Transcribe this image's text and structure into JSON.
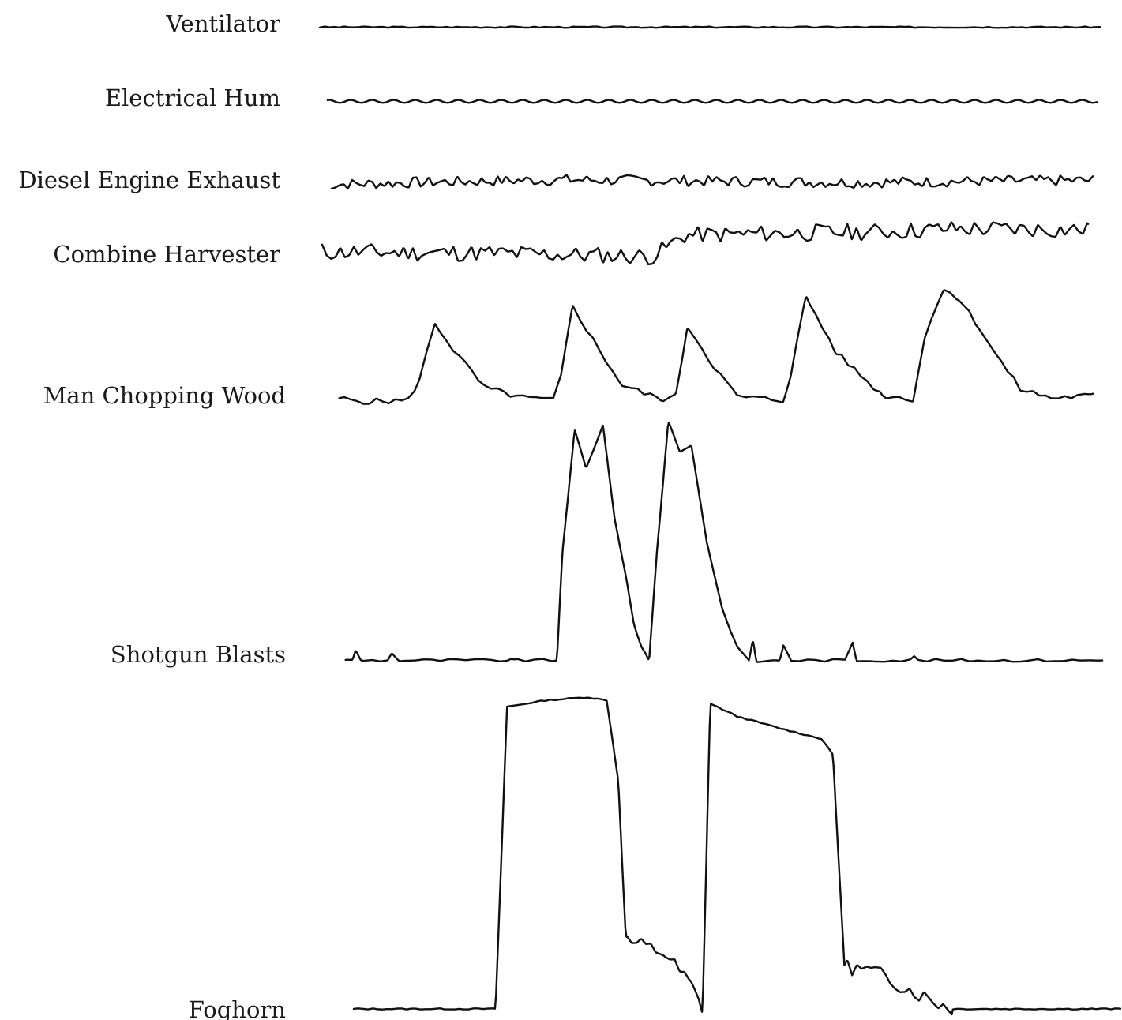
{
  "chart_data": {
    "type": "line",
    "title": "",
    "xlabel": "",
    "ylabel": "",
    "grid": false,
    "legend": "none",
    "colors": {
      "trace": "#111111",
      "label": "#1a1a1a",
      "background": "#ffffff"
    },
    "series": [
      {
        "name": "Ventilator",
        "shape": "noise",
        "base": 0.1,
        "noise_amp": 0.025,
        "noise_cycles": 160,
        "seed": 3,
        "x_range": [
          0.0,
          1.0
        ],
        "values": [
          [
            0,
            0.1
          ],
          [
            1,
            0.1
          ]
        ]
      },
      {
        "name": "Electrical Hum",
        "shape": "sine",
        "base": 0.1,
        "sine_amp": 0.05,
        "sine_cycles": 36,
        "x_range": [
          0.005,
          0.998
        ],
        "values": [
          [
            0,
            0.1
          ],
          [
            1,
            0.1
          ]
        ]
      },
      {
        "name": "Diesel Engine Exhaust",
        "shape": "noise",
        "base": 0.1,
        "noise_amp": 0.08,
        "noise_cycles": 190,
        "seed": 7,
        "x_range": [
          0.005,
          0.995
        ],
        "values": [
          [
            0,
            0.07
          ],
          [
            0.15,
            0.11
          ],
          [
            0.3,
            0.14
          ],
          [
            0.5,
            0.12
          ],
          [
            0.7,
            0.1
          ],
          [
            0.85,
            0.12
          ],
          [
            1,
            0.13
          ]
        ]
      },
      {
        "name": "Combine Harvester",
        "shape": "noise",
        "base": 0.1,
        "noise_amp": 0.08,
        "noise_cycles": 170,
        "seed": 11,
        "x_range": [
          0.0,
          0.995
        ],
        "values": [
          [
            0,
            0.1
          ],
          [
            0.2,
            0.09
          ],
          [
            0.35,
            0.07
          ],
          [
            0.43,
            0.06
          ],
          [
            0.47,
            0.25
          ],
          [
            0.6,
            0.27
          ],
          [
            0.72,
            0.28
          ],
          [
            0.82,
            0.31
          ],
          [
            1,
            0.3
          ]
        ]
      },
      {
        "name": "Man Chopping Wood",
        "shape": "peaks",
        "base": 0.06,
        "noise_amp": 0.025,
        "noise_cycles": 120,
        "seed": 5,
        "x_range": [
          0.01,
          0.995
        ],
        "values": [
          [
            0,
            0.07
          ],
          [
            0.05,
            0.04
          ],
          [
            0.1,
            0.05
          ],
          [
            0.115,
            0.22
          ],
          [
            0.135,
            0.67
          ],
          [
            0.16,
            0.45
          ],
          [
            0.2,
            0.15
          ],
          [
            0.25,
            0.07
          ],
          [
            0.29,
            0.05
          ],
          [
            0.3,
            0.25
          ],
          [
            0.315,
            0.81
          ],
          [
            0.35,
            0.45
          ],
          [
            0.38,
            0.17
          ],
          [
            0.43,
            0.06
          ],
          [
            0.45,
            0.08
          ],
          [
            0.465,
            0.65
          ],
          [
            0.5,
            0.32
          ],
          [
            0.53,
            0.08
          ],
          [
            0.59,
            0.05
          ],
          [
            0.6,
            0.26
          ],
          [
            0.62,
            0.88
          ],
          [
            0.66,
            0.43
          ],
          [
            0.72,
            0.09
          ],
          [
            0.76,
            0.06
          ],
          [
            0.775,
            0.55
          ],
          [
            0.8,
            0.96
          ],
          [
            0.82,
            0.86
          ],
          [
            0.845,
            0.65
          ],
          [
            0.87,
            0.4
          ],
          [
            0.9,
            0.14
          ],
          [
            0.94,
            0.07
          ],
          [
            1,
            0.09
          ]
        ]
      },
      {
        "name": "Shotgun Blasts",
        "shape": "blasts",
        "base": 0.005,
        "noise_amp": 0.006,
        "noise_cycles": 90,
        "seed": 9,
        "x_range": [
          0.01,
          0.995
        ],
        "values": [
          [
            0,
            0.005
          ],
          [
            0.019,
            0.005
          ],
          [
            0.023,
            0.045
          ],
          [
            0.03,
            0.005
          ],
          [
            0.065,
            0.005
          ],
          [
            0.07,
            0.035
          ],
          [
            0.08,
            0.005
          ],
          [
            0.22,
            0.005
          ],
          [
            0.225,
            0.01
          ],
          [
            0.23,
            0.005
          ],
          [
            0.285,
            0.005
          ],
          [
            0.292,
            0.45
          ],
          [
            0.308,
            0.96
          ],
          [
            0.323,
            0.8
          ],
          [
            0.333,
            0.88
          ],
          [
            0.345,
            0.98
          ],
          [
            0.36,
            0.6
          ],
          [
            0.375,
            0.35
          ],
          [
            0.385,
            0.16
          ],
          [
            0.395,
            0.06
          ],
          [
            0.405,
            0.0
          ],
          [
            0.415,
            0.45
          ],
          [
            0.43,
            1.0
          ],
          [
            0.445,
            0.87
          ],
          [
            0.46,
            0.9
          ],
          [
            0.48,
            0.5
          ],
          [
            0.5,
            0.22
          ],
          [
            0.52,
            0.06
          ],
          [
            0.535,
            0.0
          ],
          [
            0.54,
            0.09
          ],
          [
            0.545,
            0.0
          ],
          [
            0.575,
            0.005
          ],
          [
            0.58,
            0.07
          ],
          [
            0.59,
            0.005
          ],
          [
            0.66,
            0.005
          ],
          [
            0.67,
            0.08
          ],
          [
            0.675,
            0.005
          ],
          [
            0.745,
            0.005
          ],
          [
            0.75,
            0.02
          ],
          [
            0.755,
            0.005
          ],
          [
            1,
            0.005
          ]
        ]
      },
      {
        "name": "Foghorn",
        "shape": "steps",
        "base": 0.005,
        "noise_amp": 0.025,
        "noise_cycles": 160,
        "seed": 13,
        "noisy_ranges": [
          [
            0.355,
            0.455
          ],
          [
            0.64,
            0.78
          ]
        ],
        "x_range": [
          0.0,
          1.0
        ],
        "values": [
          [
            0,
            0.005
          ],
          [
            0.185,
            0.005
          ],
          [
            0.2,
            0.95
          ],
          [
            0.25,
            0.97
          ],
          [
            0.305,
            0.98
          ],
          [
            0.33,
            0.97
          ],
          [
            0.345,
            0.72
          ],
          [
            0.355,
            0.22
          ],
          [
            0.38,
            0.2
          ],
          [
            0.405,
            0.18
          ],
          [
            0.44,
            0.08
          ],
          [
            0.455,
            0.0
          ],
          [
            0.465,
            0.96
          ],
          [
            0.5,
            0.92
          ],
          [
            0.56,
            0.88
          ],
          [
            0.61,
            0.85
          ],
          [
            0.625,
            0.8
          ],
          [
            0.64,
            0.14
          ],
          [
            0.68,
            0.12
          ],
          [
            0.73,
            0.06
          ],
          [
            0.78,
            0.005
          ],
          [
            0.95,
            0.005
          ],
          [
            1,
            0.005
          ]
        ]
      }
    ]
  }
}
